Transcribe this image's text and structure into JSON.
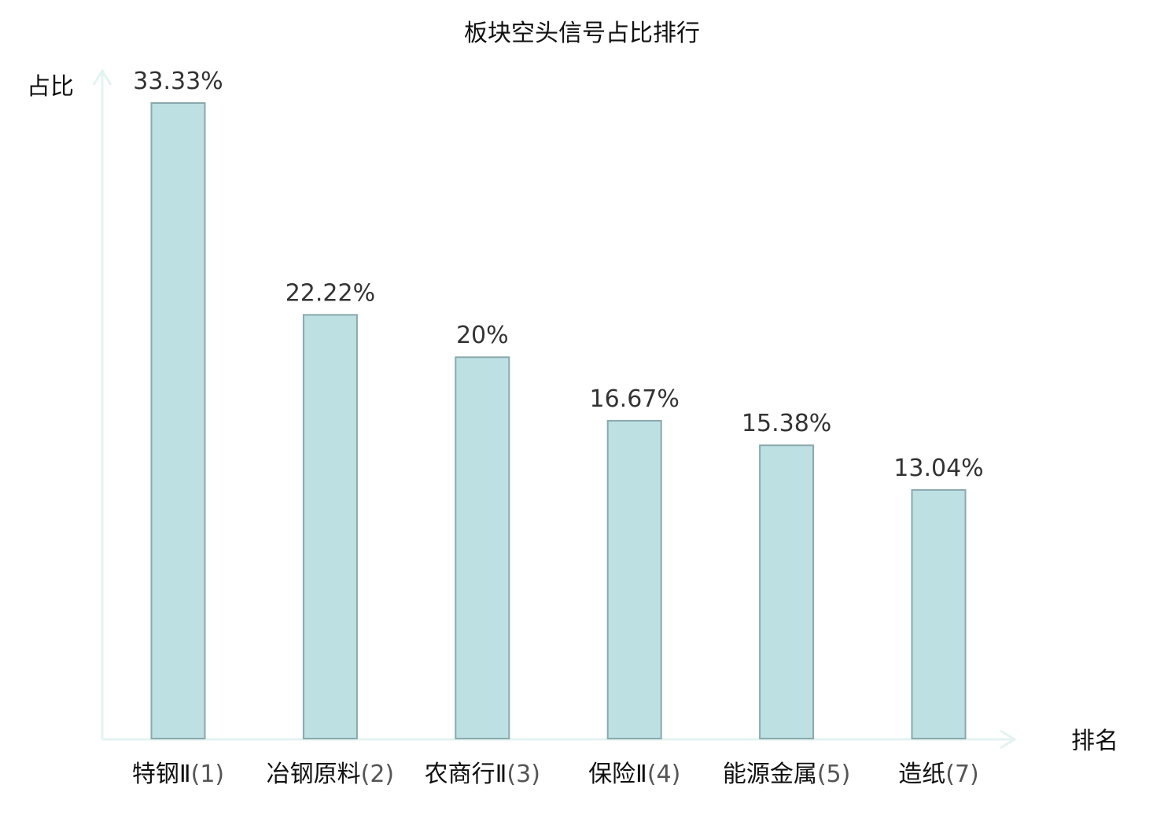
{
  "chart_data": {
    "type": "bar",
    "title": "板块空头信号占比排行",
    "xlabel": "排名",
    "ylabel": "占比",
    "categories": [
      {
        "name": "特钢Ⅱ",
        "rank": "(1)",
        "highlight": false
      },
      {
        "name": "冶钢原料",
        "rank": "(2)",
        "highlight": false
      },
      {
        "name": "农商行Ⅱ",
        "rank": "(3)",
        "highlight": false
      },
      {
        "name": "保险Ⅱ",
        "rank": "(4)",
        "highlight": false
      },
      {
        "name": "能源金属",
        "rank": "(5)",
        "highlight": false
      },
      {
        "name": "造纸",
        "rank": "(7)",
        "highlight": true
      }
    ],
    "values": [
      33.33,
      22.22,
      20,
      16.67,
      15.38,
      13.04
    ],
    "value_labels": [
      "33.33%",
      "22.22%",
      "20%",
      "16.67%",
      "15.38%",
      "13.04%"
    ],
    "ylim": [
      0,
      33.33
    ],
    "grid": false,
    "colors": {
      "bar_fill": "#bde0e3",
      "bar_stroke": "#8aa9ac",
      "axis": "#e3f3f1",
      "highlight_text": "#e02020",
      "text": "#111111",
      "rank_text": "#555555",
      "value_text": "#333333"
    }
  }
}
